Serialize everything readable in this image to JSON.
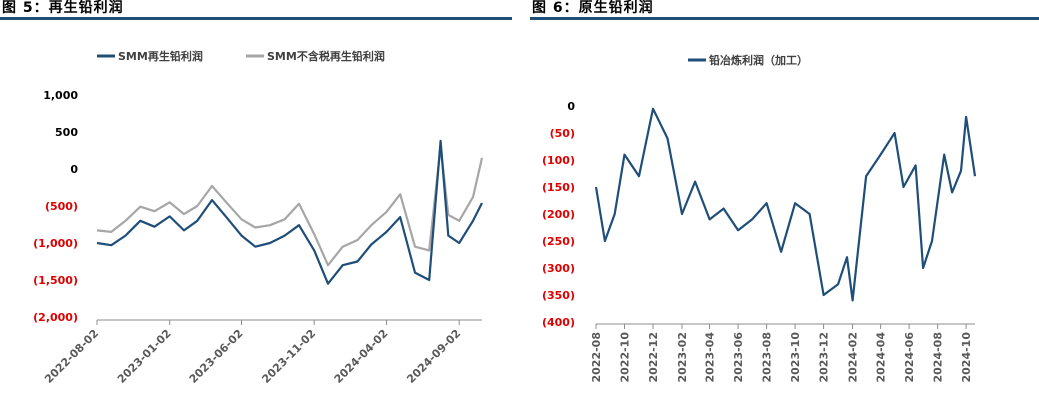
{
  "figures": [
    {
      "title": "图 5：再生铅利润"
    },
    {
      "title": "图 6：原生铅利润"
    }
  ],
  "chart_data": [
    {
      "type": "line",
      "legend_position": "top",
      "grid": false,
      "y_ticks": [
        {
          "value": 1000,
          "label": "1,000"
        },
        {
          "value": 500,
          "label": "500"
        },
        {
          "value": 0,
          "label": "0"
        },
        {
          "value": -500,
          "label": "(500)"
        },
        {
          "value": -1000,
          "label": "(1,000)"
        },
        {
          "value": -1500,
          "label": "(1,500)"
        },
        {
          "value": -2000,
          "label": "(2,000)"
        }
      ],
      "ylim": [
        -2000,
        1000
      ],
      "x_tick_labels": [
        "2022-08-02",
        "2023-01-02",
        "2023-06-02",
        "2023-11-02",
        "2024-04-02",
        "2024-09-02"
      ],
      "negative_label_color": "#e00000",
      "series": [
        {
          "name": "SMM再生铅利润",
          "color": "#1f4e79",
          "points": [
            [
              "2022-08-02",
              -1000
            ],
            [
              "2022-09-01",
              -1030
            ],
            [
              "2022-10-01",
              -900
            ],
            [
              "2022-11-01",
              -700
            ],
            [
              "2022-12-01",
              -780
            ],
            [
              "2023-01-02",
              -640
            ],
            [
              "2023-02-01",
              -830
            ],
            [
              "2023-03-01",
              -700
            ],
            [
              "2023-04-01",
              -420
            ],
            [
              "2023-05-01",
              -650
            ],
            [
              "2023-06-02",
              -900
            ],
            [
              "2023-07-01",
              -1050
            ],
            [
              "2023-08-01",
              -1000
            ],
            [
              "2023-09-01",
              -900
            ],
            [
              "2023-10-01",
              -760
            ],
            [
              "2023-11-02",
              -1100
            ],
            [
              "2023-12-01",
              -1550
            ],
            [
              "2024-01-01",
              -1300
            ],
            [
              "2024-02-01",
              -1250
            ],
            [
              "2024-03-01",
              -1020
            ],
            [
              "2024-04-02",
              -850
            ],
            [
              "2024-05-01",
              -650
            ],
            [
              "2024-06-01",
              -1400
            ],
            [
              "2024-07-01",
              -1500
            ],
            [
              "2024-07-25",
              380
            ],
            [
              "2024-08-10",
              -900
            ],
            [
              "2024-09-02",
              -1000
            ],
            [
              "2024-10-01",
              -700
            ],
            [
              "2024-10-20",
              -460
            ]
          ]
        },
        {
          "name": "SMM不含税再生铅利润",
          "color": "#a6a6a6",
          "points": [
            [
              "2022-08-02",
              -830
            ],
            [
              "2022-09-01",
              -850
            ],
            [
              "2022-10-01",
              -700
            ],
            [
              "2022-11-01",
              -510
            ],
            [
              "2022-12-01",
              -570
            ],
            [
              "2023-01-02",
              -450
            ],
            [
              "2023-02-01",
              -610
            ],
            [
              "2023-03-01",
              -500
            ],
            [
              "2023-04-01",
              -230
            ],
            [
              "2023-05-01",
              -450
            ],
            [
              "2023-06-02",
              -680
            ],
            [
              "2023-07-01",
              -790
            ],
            [
              "2023-08-01",
              -760
            ],
            [
              "2023-09-01",
              -680
            ],
            [
              "2023-10-01",
              -470
            ],
            [
              "2023-11-02",
              -880
            ],
            [
              "2023-12-01",
              -1300
            ],
            [
              "2024-01-01",
              -1050
            ],
            [
              "2024-02-01",
              -960
            ],
            [
              "2024-03-01",
              -760
            ],
            [
              "2024-04-02",
              -580
            ],
            [
              "2024-05-01",
              -340
            ],
            [
              "2024-06-01",
              -1050
            ],
            [
              "2024-07-01",
              -1100
            ],
            [
              "2024-07-25",
              300
            ],
            [
              "2024-08-10",
              -620
            ],
            [
              "2024-09-02",
              -700
            ],
            [
              "2024-10-01",
              -380
            ],
            [
              "2024-10-20",
              150
            ]
          ]
        }
      ]
    },
    {
      "type": "line",
      "legend_position": "top",
      "grid": false,
      "y_ticks": [
        {
          "value": 0,
          "label": "0"
        },
        {
          "value": -50,
          "label": "(50)"
        },
        {
          "value": -100,
          "label": "(100)"
        },
        {
          "value": -150,
          "label": "(150)"
        },
        {
          "value": -200,
          "label": "(200)"
        },
        {
          "value": -250,
          "label": "(250)"
        },
        {
          "value": -300,
          "label": "(300)"
        },
        {
          "value": -350,
          "label": "(350)"
        },
        {
          "value": -400,
          "label": "(400)"
        }
      ],
      "ylim": [
        -400,
        0
      ],
      "x_tick_labels": [
        "2022-08",
        "2022-10",
        "2022-12",
        "2023-02",
        "2023-04",
        "2023-06",
        "2023-08",
        "2023-10",
        "2023-12",
        "2024-02",
        "2024-04",
        "2024-06",
        "2024-08",
        "2024-10"
      ],
      "negative_label_color": "#e00000",
      "series": [
        {
          "name": "铅冶炼利润（加工）",
          "color": "#1f4e79",
          "points": [
            [
              "2022-08-01",
              -150
            ],
            [
              "2022-08-20",
              -250
            ],
            [
              "2022-09-10",
              -200
            ],
            [
              "2022-10-01",
              -90
            ],
            [
              "2022-11-01",
              -130
            ],
            [
              "2022-12-01",
              -5
            ],
            [
              "2023-01-01",
              -60
            ],
            [
              "2023-02-01",
              -200
            ],
            [
              "2023-03-01",
              -140
            ],
            [
              "2023-04-01",
              -210
            ],
            [
              "2023-05-01",
              -190
            ],
            [
              "2023-06-01",
              -230
            ],
            [
              "2023-07-01",
              -210
            ],
            [
              "2023-08-01",
              -180
            ],
            [
              "2023-09-01",
              -270
            ],
            [
              "2023-10-01",
              -180
            ],
            [
              "2023-11-01",
              -200
            ],
            [
              "2023-12-01",
              -350
            ],
            [
              "2024-01-01",
              -330
            ],
            [
              "2024-01-20",
              -280
            ],
            [
              "2024-02-01",
              -360
            ],
            [
              "2024-03-01",
              -130
            ],
            [
              "2024-04-01",
              -90
            ],
            [
              "2024-05-01",
              -50
            ],
            [
              "2024-05-20",
              -150
            ],
            [
              "2024-06-15",
              -110
            ],
            [
              "2024-07-01",
              -300
            ],
            [
              "2024-07-20",
              -250
            ],
            [
              "2024-08-15",
              -90
            ],
            [
              "2024-09-01",
              -160
            ],
            [
              "2024-09-20",
              -120
            ],
            [
              "2024-10-01",
              -20
            ],
            [
              "2024-10-20",
              -130
            ]
          ]
        }
      ]
    }
  ]
}
